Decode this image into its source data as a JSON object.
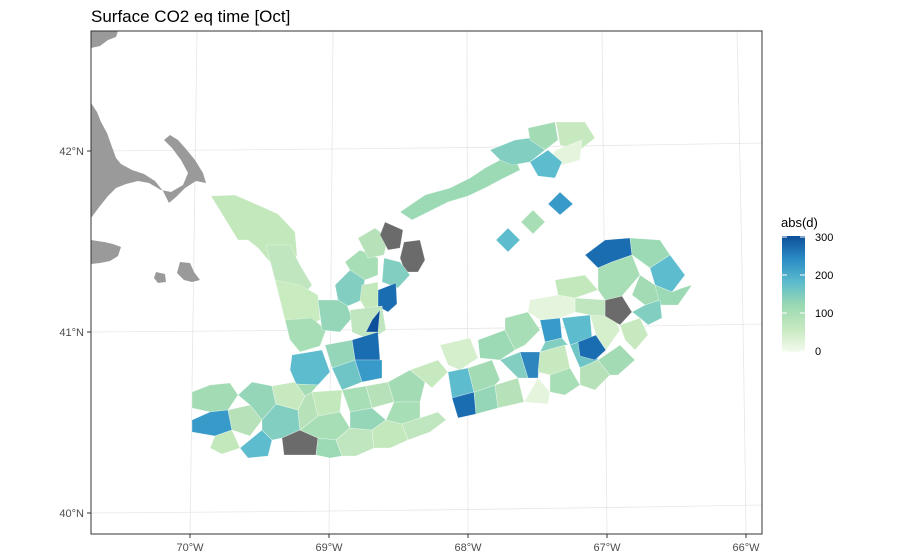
{
  "title": "Surface CO2 eq time [Oct]",
  "axes": {
    "x_ticks": [
      "70°W",
      "69°W",
      "68°W",
      "67°W",
      "66°W"
    ],
    "y_ticks": [
      "40°N",
      "41°N",
      "42°N"
    ]
  },
  "legend": {
    "title": "abs(d)",
    "ticks": [
      "300",
      "200",
      "100",
      "0"
    ],
    "range": [
      0,
      300
    ],
    "placement": "right"
  },
  "colors": {
    "land": "#9a9a9a",
    "no_data": "#6b6b6b",
    "scale": [
      "#f3fbee",
      "#bfe6bf",
      "#a3dbb4",
      "#82cfc1",
      "#5dbccd",
      "#389ac8",
      "#1b6db1",
      "#0d4f9a"
    ]
  },
  "chart_data": {
    "type": "map",
    "fill_variable": "abs(d)",
    "grid": true
  }
}
